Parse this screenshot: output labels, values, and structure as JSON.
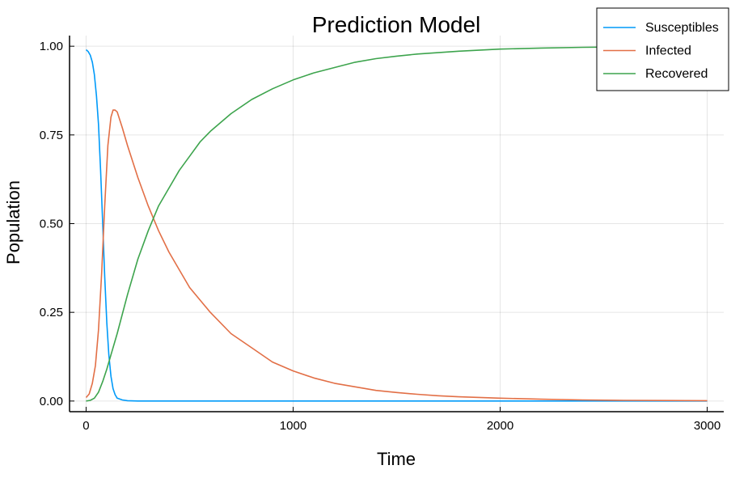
{
  "chart_data": {
    "type": "line",
    "title": "Prediction Model",
    "xlabel": "Time",
    "ylabel": "Population",
    "xlim": [
      -80,
      3080
    ],
    "ylim": [
      -0.03,
      1.03
    ],
    "x_ticks": [
      0,
      1000,
      2000,
      3000
    ],
    "x_tick_labels": [
      "0",
      "1000",
      "2000",
      "3000"
    ],
    "y_ticks": [
      0,
      0.25,
      0.5,
      0.75,
      1.0
    ],
    "y_tick_labels": [
      "0.00",
      "0.25",
      "0.50",
      "0.75",
      "1.00"
    ],
    "grid": true,
    "legend_position": "top-right",
    "series": [
      {
        "name": "Susceptibles",
        "color": "#009af9",
        "x": [
          0,
          10,
          20,
          30,
          40,
          50,
          60,
          70,
          80,
          90,
          100,
          110,
          120,
          130,
          140,
          150,
          175,
          200,
          250,
          300,
          500,
          1000,
          2000,
          3000
        ],
        "y": [
          0.99,
          0.985,
          0.975,
          0.955,
          0.92,
          0.86,
          0.78,
          0.65,
          0.5,
          0.35,
          0.22,
          0.13,
          0.07,
          0.035,
          0.018,
          0.008,
          0.003,
          0.001,
          0.0,
          0.0,
          0.0,
          0.0,
          0.0,
          0.0
        ]
      },
      {
        "name": "Infected",
        "color": "#e26f46",
        "x": [
          0,
          15,
          30,
          45,
          60,
          75,
          90,
          105,
          120,
          130,
          140,
          150,
          175,
          200,
          250,
          300,
          350,
          400,
          500,
          600,
          700,
          800,
          900,
          1000,
          1100,
          1200,
          1300,
          1400,
          1500,
          1600,
          1700,
          1800,
          2000,
          2200,
          2400,
          2600,
          2800,
          3000
        ],
        "y": [
          0.01,
          0.02,
          0.05,
          0.1,
          0.2,
          0.36,
          0.55,
          0.72,
          0.8,
          0.82,
          0.82,
          0.815,
          0.77,
          0.72,
          0.63,
          0.55,
          0.48,
          0.42,
          0.32,
          0.25,
          0.19,
          0.15,
          0.11,
          0.085,
          0.065,
          0.05,
          0.04,
          0.03,
          0.024,
          0.019,
          0.015,
          0.012,
          0.008,
          0.005,
          0.003,
          0.002,
          0.0015,
          0.001
        ]
      },
      {
        "name": "Recovered",
        "color": "#3da44d",
        "x": [
          0,
          20,
          40,
          60,
          80,
          100,
          120,
          150,
          200,
          250,
          300,
          350,
          400,
          450,
          500,
          550,
          600,
          700,
          800,
          900,
          1000,
          1100,
          1200,
          1300,
          1400,
          1500,
          1600,
          1800,
          2000,
          2200,
          2400,
          2600,
          2800,
          3000
        ],
        "y": [
          0.0,
          0.002,
          0.008,
          0.025,
          0.055,
          0.09,
          0.13,
          0.19,
          0.3,
          0.4,
          0.48,
          0.55,
          0.6,
          0.65,
          0.69,
          0.73,
          0.76,
          0.81,
          0.85,
          0.88,
          0.905,
          0.925,
          0.94,
          0.955,
          0.965,
          0.972,
          0.978,
          0.986,
          0.992,
          0.995,
          0.997,
          0.998,
          0.999,
          0.999
        ]
      }
    ]
  }
}
